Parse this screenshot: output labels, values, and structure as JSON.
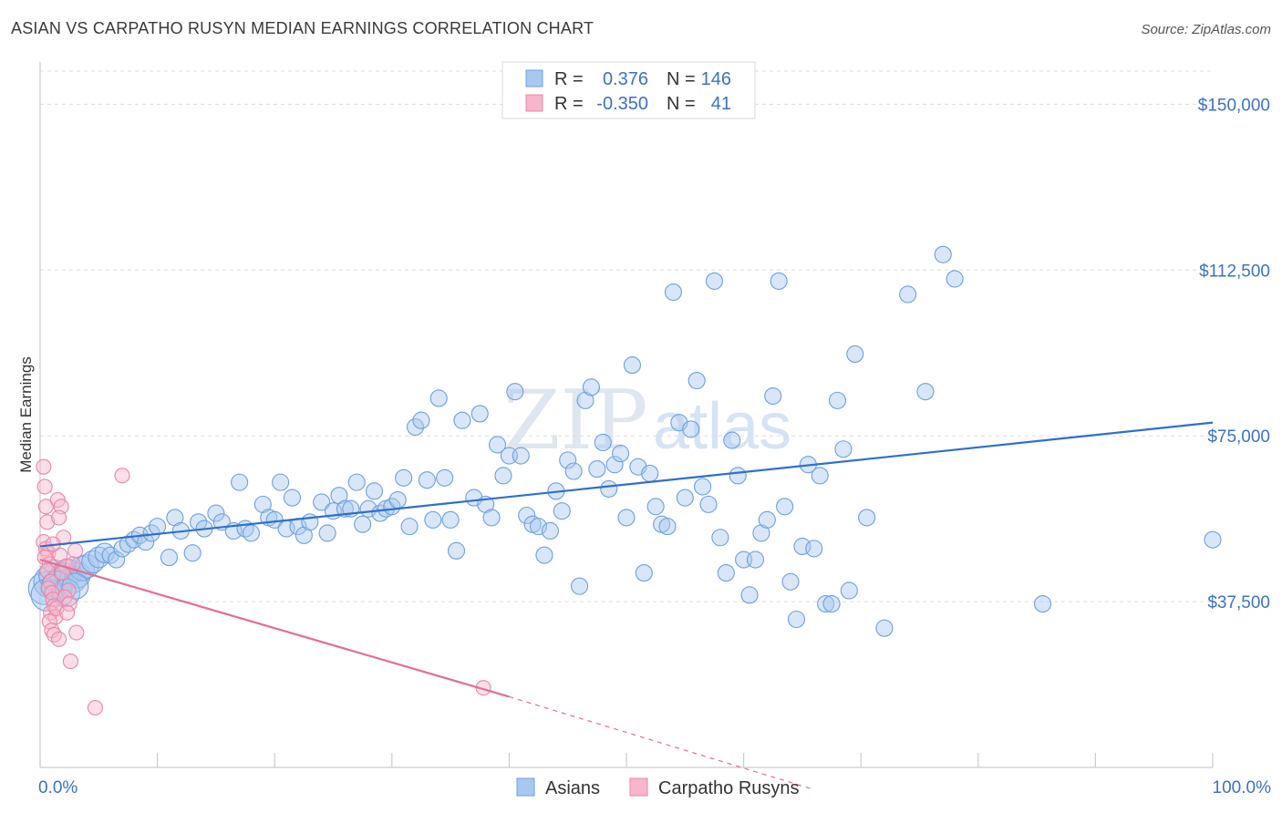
{
  "title": "ASIAN VS CARPATHO RUSYN MEDIAN EARNINGS CORRELATION CHART",
  "source": "Source: ZipAtlas.com",
  "chart_data": {
    "type": "scatter",
    "ylabel": "Median Earnings",
    "xlim": [
      0,
      100
    ],
    "ylim": [
      0,
      157500
    ],
    "x_tick_labels": [
      "0.0%",
      "100.0%"
    ],
    "y_ticks": [
      37500,
      75000,
      112500,
      150000
    ],
    "y_tick_labels": [
      "$37,500",
      "$75,000",
      "$112,500",
      "$150,000"
    ],
    "watermark": "ZIPatlas",
    "legend": {
      "entries": [
        {
          "r_label": "R =",
          "r_value": "0.376",
          "n_label": "N =",
          "n_value": "146",
          "color": "#a9c8f0",
          "stroke": "#6e9fdc"
        },
        {
          "r_label": "R =",
          "r_value": "-0.350",
          "n_label": "N =",
          "n_value": "41",
          "color": "#f7b6cb",
          "stroke": "#e888a8"
        }
      ]
    },
    "bottom_legend": [
      "Asians",
      "Carpatho Rusyns"
    ],
    "series": [
      {
        "name": "Asians",
        "color": "#a9c8f0",
        "stroke": "#6e9fdc",
        "line_color": "#2f6fce",
        "trend": {
          "x0": 0,
          "y0": 50000,
          "x1": 100,
          "y1": 78000
        },
        "points": [
          [
            0.4,
            40500
          ],
          [
            0.8,
            42000
          ],
          [
            1.2,
            43500
          ],
          [
            1.6,
            41500
          ],
          [
            2.0,
            43000
          ],
          [
            2.4,
            44000
          ],
          [
            2.8,
            42500
          ],
          [
            3.2,
            43500
          ],
          [
            3.6,
            45000
          ],
          [
            4.0,
            45500
          ],
          [
            4.5,
            46500
          ],
          [
            5.0,
            47500
          ],
          [
            5.5,
            48500
          ],
          [
            6.0,
            48000
          ],
          [
            6.5,
            47000
          ],
          [
            7.0,
            49500
          ],
          [
            7.5,
            50500
          ],
          [
            8.0,
            51500
          ],
          [
            8.5,
            52500
          ],
          [
            9.0,
            51000
          ],
          [
            9.5,
            53000
          ],
          [
            10.0,
            54500
          ],
          [
            11.0,
            47500
          ],
          [
            11.5,
            56500
          ],
          [
            12.0,
            53500
          ],
          [
            13.0,
            48500
          ],
          [
            13.5,
            55500
          ],
          [
            14.0,
            54000
          ],
          [
            15.0,
            57500
          ],
          [
            15.5,
            55500
          ],
          [
            16.5,
            53500
          ],
          [
            17.0,
            64500
          ],
          [
            17.5,
            54000
          ],
          [
            18.0,
            53000
          ],
          [
            19.0,
            59500
          ],
          [
            19.5,
            56500
          ],
          [
            20.0,
            56000
          ],
          [
            20.5,
            64500
          ],
          [
            21.0,
            54000
          ],
          [
            21.5,
            61000
          ],
          [
            22.0,
            54500
          ],
          [
            22.5,
            52500
          ],
          [
            23.0,
            55500
          ],
          [
            24.0,
            60000
          ],
          [
            24.5,
            53000
          ],
          [
            25.0,
            58000
          ],
          [
            25.5,
            61500
          ],
          [
            26.0,
            58500
          ],
          [
            26.5,
            58500
          ],
          [
            27.0,
            64500
          ],
          [
            27.5,
            55000
          ],
          [
            28.0,
            58500
          ],
          [
            28.5,
            62500
          ],
          [
            29.0,
            57500
          ],
          [
            29.5,
            58500
          ],
          [
            30.0,
            59000
          ],
          [
            30.5,
            60500
          ],
          [
            31.0,
            65500
          ],
          [
            31.5,
            54500
          ],
          [
            32.0,
            77000
          ],
          [
            32.5,
            78500
          ],
          [
            33.0,
            65000
          ],
          [
            33.5,
            56000
          ],
          [
            34.0,
            83500
          ],
          [
            34.5,
            65500
          ],
          [
            35.0,
            56000
          ],
          [
            35.5,
            49000
          ],
          [
            36.0,
            78500
          ],
          [
            37.0,
            61000
          ],
          [
            37.5,
            80000
          ],
          [
            38.0,
            59500
          ],
          [
            38.5,
            56500
          ],
          [
            39.0,
            73000
          ],
          [
            39.5,
            66000
          ],
          [
            40.0,
            70500
          ],
          [
            40.5,
            85000
          ],
          [
            41.0,
            70500
          ],
          [
            41.5,
            57000
          ],
          [
            42.0,
            55000
          ],
          [
            42.5,
            54500
          ],
          [
            43.0,
            48000
          ],
          [
            43.5,
            53500
          ],
          [
            44.0,
            62500
          ],
          [
            44.5,
            58000
          ],
          [
            45.0,
            69500
          ],
          [
            45.5,
            67000
          ],
          [
            46.0,
            41000
          ],
          [
            46.5,
            83000
          ],
          [
            47.0,
            86000
          ],
          [
            47.5,
            67500
          ],
          [
            48.0,
            73500
          ],
          [
            48.5,
            63000
          ],
          [
            49.0,
            68500
          ],
          [
            49.5,
            71000
          ],
          [
            50.0,
            56500
          ],
          [
            50.5,
            91000
          ],
          [
            51.0,
            68000
          ],
          [
            51.5,
            44000
          ],
          [
            52.0,
            66500
          ],
          [
            52.5,
            59000
          ],
          [
            53.0,
            55000
          ],
          [
            53.5,
            54500
          ],
          [
            54.0,
            107500
          ],
          [
            54.5,
            78000
          ],
          [
            55.0,
            61000
          ],
          [
            55.5,
            76500
          ],
          [
            56.0,
            87500
          ],
          [
            56.5,
            63500
          ],
          [
            57.0,
            59500
          ],
          [
            57.5,
            110000
          ],
          [
            58.0,
            52000
          ],
          [
            58.5,
            44000
          ],
          [
            59.0,
            74000
          ],
          [
            59.5,
            66000
          ],
          [
            60.0,
            47000
          ],
          [
            60.5,
            39000
          ],
          [
            61.0,
            47000
          ],
          [
            61.5,
            53000
          ],
          [
            62.0,
            56000
          ],
          [
            62.5,
            84000
          ],
          [
            63.0,
            110000
          ],
          [
            63.5,
            59000
          ],
          [
            64.0,
            42000
          ],
          [
            64.5,
            33500
          ],
          [
            65.0,
            50000
          ],
          [
            65.5,
            68500
          ],
          [
            66.0,
            49500
          ],
          [
            66.5,
            66000
          ],
          [
            67.0,
            37000
          ],
          [
            67.5,
            37000
          ],
          [
            68.0,
            83000
          ],
          [
            68.5,
            72000
          ],
          [
            69.0,
            40000
          ],
          [
            69.5,
            93500
          ],
          [
            70.5,
            56500
          ],
          [
            72.0,
            31500
          ],
          [
            74.0,
            107000
          ],
          [
            75.5,
            85000
          ],
          [
            77.0,
            116000
          ],
          [
            78.0,
            110500
          ],
          [
            85.5,
            37000
          ],
          [
            100.0,
            51500
          ],
          [
            0.6,
            39000
          ],
          [
            1.4,
            41000
          ],
          [
            2.2,
            39500
          ],
          [
            3.0,
            41000
          ]
        ]
      },
      {
        "name": "Carpatho Rusyns",
        "color": "#f7b6cb",
        "stroke": "#e888a8",
        "line_color": "#e56d95",
        "trend": {
          "x0": 0,
          "y0": 47000,
          "x1": 40,
          "y1": 16000
        },
        "dashed_to": {
          "x": 66,
          "y": -5000
        },
        "points": [
          [
            0.3,
            68000
          ],
          [
            0.4,
            63500
          ],
          [
            0.5,
            59000
          ],
          [
            0.6,
            55500
          ],
          [
            0.3,
            51000
          ],
          [
            0.5,
            49500
          ],
          [
            0.7,
            48500
          ],
          [
            0.4,
            47500
          ],
          [
            0.8,
            46000
          ],
          [
            0.6,
            44500
          ],
          [
            0.9,
            42000
          ],
          [
            0.7,
            40500
          ],
          [
            1.0,
            39500
          ],
          [
            1.1,
            38000
          ],
          [
            1.2,
            36500
          ],
          [
            0.9,
            35000
          ],
          [
            1.3,
            34000
          ],
          [
            0.8,
            33000
          ],
          [
            1.0,
            31000
          ],
          [
            1.2,
            30000
          ],
          [
            1.5,
            60500
          ],
          [
            1.8,
            59000
          ],
          [
            1.6,
            56500
          ],
          [
            2.0,
            52000
          ],
          [
            1.7,
            48000
          ],
          [
            2.2,
            45500
          ],
          [
            1.9,
            44000
          ],
          [
            2.4,
            40000
          ],
          [
            2.1,
            38500
          ],
          [
            2.5,
            37000
          ],
          [
            1.4,
            36000
          ],
          [
            2.3,
            35000
          ],
          [
            1.6,
            29000
          ],
          [
            2.6,
            24000
          ],
          [
            3.0,
            49000
          ],
          [
            2.8,
            46000
          ],
          [
            3.1,
            30500
          ],
          [
            4.7,
            13500
          ],
          [
            7.0,
            66000
          ],
          [
            37.8,
            18000
          ],
          [
            1.1,
            50500
          ]
        ]
      }
    ]
  }
}
